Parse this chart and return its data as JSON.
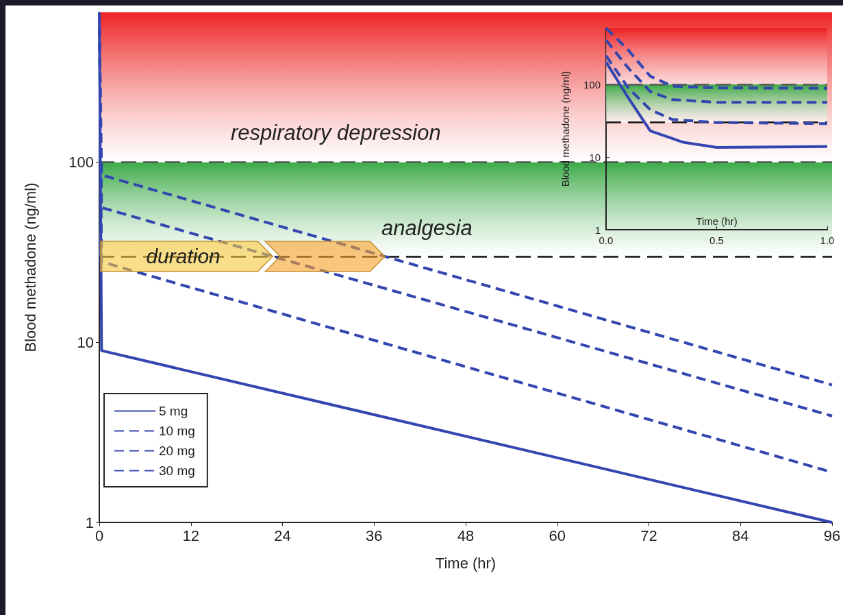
{
  "chart_data": [
    {
      "type": "line",
      "xlabel": "Time (hr)",
      "ylabel": "Blood methadone (ng/ml)",
      "log": "y",
      "xlim": [
        0,
        96
      ],
      "xticks": [
        0,
        12,
        24,
        36,
        48,
        60,
        72,
        84,
        96
      ],
      "ylim": [
        1,
        680
      ],
      "yticks": [
        1,
        10,
        100
      ],
      "grid": false,
      "legend": "bottom left",
      "marker": "none",
      "series": [
        {
          "name": "5 mg",
          "color": "#3346b0",
          "line_style": "solid",
          "x": [
            0,
            0.3,
            96
          ],
          "values": [
            680,
            9,
            1
          ]
        },
        {
          "name": "10 mg",
          "color": "#3346b0",
          "line_style": "dashed",
          "x": [
            0,
            0.3,
            96
          ],
          "values": [
            680,
            28,
            1.9
          ]
        },
        {
          "name": "20 mg",
          "color": "#3346b0",
          "line_style": "dashed",
          "x": [
            0,
            0.3,
            96
          ],
          "values": [
            680,
            56,
            3.9
          ]
        },
        {
          "name": "30 mg",
          "color": "#3346b0",
          "line_style": "dashed",
          "x": [
            0,
            0.3,
            96
          ],
          "values": [
            680,
            85,
            5.8
          ]
        }
      ],
      "bands": [
        {
          "axis": "y",
          "from": 100,
          "to": 680,
          "label": "respiratory depression",
          "color": "#ee2222"
        },
        {
          "axis": "y",
          "from": 30,
          "to": 100,
          "label": "analgesia",
          "color": "#3caa48"
        }
      ],
      "ref_lines": [
        {
          "axis": "y",
          "value": 100,
          "color": "#555555",
          "line_style": "dashed"
        },
        {
          "axis": "y",
          "value": 30,
          "color": "#111111",
          "line_style": "dashed"
        }
      ],
      "annotations": [
        {
          "text": "duration",
          "x": 11,
          "y": 30
        }
      ]
    },
    {
      "type": "line",
      "xlabel": "Time (hr)",
      "ylabel": "Blood methadone (ng/ml)",
      "log": "y",
      "xlim": [
        0,
        1
      ],
      "xticks": [
        {
          "value": 0,
          "label": "0.0"
        },
        {
          "value": 0.5,
          "label": "0.5"
        },
        {
          "value": 1,
          "label": "1.0"
        }
      ],
      "ylim": [
        1,
        600
      ],
      "yticks": [
        1,
        10,
        100
      ],
      "grid": false,
      "marker": "none",
      "series": [
        {
          "color": "#3346b0",
          "line_style": "solid",
          "x": [
            0,
            0.1,
            0.2,
            0.35,
            0.5,
            1
          ],
          "values": [
            205,
            66,
            23,
            16,
            13.6,
            14
          ]
        },
        {
          "color": "#3346b0",
          "line_style": "dashed",
          "x": [
            0,
            0.1,
            0.2,
            0.3,
            0.5,
            1
          ],
          "values": [
            250,
            90,
            45,
            33,
            30,
            29
          ]
        },
        {
          "color": "#3346b0",
          "line_style": "dashed",
          "x": [
            0,
            0.1,
            0.2,
            0.3,
            0.5,
            1
          ],
          "values": [
            410,
            170,
            80,
            62,
            57,
            57
          ]
        },
        {
          "color": "#3346b0",
          "line_style": "dashed",
          "x": [
            0,
            0.1,
            0.2,
            0.3,
            0.5,
            1
          ],
          "values": [
            600,
            300,
            130,
            95,
            90,
            89
          ]
        }
      ],
      "bands": [
        {
          "axis": "y",
          "from": 100,
          "to": 600,
          "color": "#ee2222"
        },
        {
          "axis": "y",
          "from": 30,
          "to": 100,
          "color": "#3caa48"
        }
      ],
      "ref_lines": [
        {
          "axis": "y",
          "value": 100,
          "color": "#555555",
          "line_style": "dashed"
        },
        {
          "axis": "y",
          "value": 30,
          "color": "#111111",
          "line_style": "dashed"
        }
      ]
    }
  ]
}
